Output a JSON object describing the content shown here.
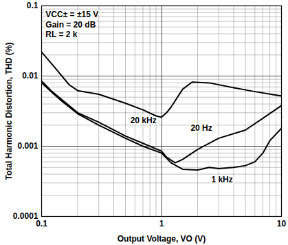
{
  "chart_data": {
    "type": "line",
    "log": true,
    "grid": true,
    "x_label": "Output Voltage, VO (V)",
    "y_label": "Total Harmonic Distortion, THD (%)",
    "xlim": [
      0.1,
      10
    ],
    "ylim": [
      0.0001,
      0.1
    ],
    "xticks": [
      0.1,
      1,
      10
    ],
    "yticks": [
      0.0001,
      0.001,
      0.01,
      0.1
    ],
    "series": [
      {
        "name": "20 kHz",
        "color": "#000000",
        "x": [
          0.1,
          0.13,
          0.17,
          0.2,
          0.3,
          0.5,
          0.7,
          0.9,
          1.0,
          1.1,
          1.2,
          1.5,
          1.8,
          2.5,
          4,
          6,
          10
        ],
        "values": [
          0.022,
          0.013,
          0.0075,
          0.0062,
          0.0055,
          0.0041,
          0.0033,
          0.0027,
          0.0026,
          0.003,
          0.0036,
          0.0065,
          0.0082,
          0.008,
          0.0068,
          0.006,
          0.0052
        ]
      },
      {
        "name": "20 Hz",
        "color": "#000000",
        "x": [
          0.1,
          0.12,
          0.15,
          0.2,
          0.3,
          0.5,
          0.7,
          1.0,
          1.1,
          1.3,
          1.5,
          2,
          3,
          5,
          7,
          10
        ],
        "values": [
          0.0085,
          0.0062,
          0.0045,
          0.003,
          0.0022,
          0.0014,
          0.0011,
          0.00085,
          0.0007,
          0.00058,
          0.00065,
          0.0009,
          0.0013,
          0.0017,
          0.0025,
          0.0038
        ]
      },
      {
        "name": "1 kHz",
        "color": "#000000",
        "x": [
          0.1,
          0.12,
          0.15,
          0.2,
          0.3,
          0.5,
          0.7,
          1.0,
          1.2,
          1.5,
          2,
          2.5,
          3,
          4,
          5,
          6,
          7,
          8,
          10
        ],
        "values": [
          0.008,
          0.006,
          0.0043,
          0.0029,
          0.002,
          0.0013,
          0.001,
          0.0008,
          0.00058,
          0.00047,
          0.00046,
          0.0005,
          0.00048,
          0.0005,
          0.00053,
          0.0006,
          0.0008,
          0.0012,
          0.0018
        ]
      }
    ],
    "annotations": [
      {
        "text": "VCC± = ±15 V",
        "x": 0.108,
        "y": 0.076
      },
      {
        "text": "Gain = 20 dB",
        "x": 0.108,
        "y": 0.054
      },
      {
        "text": "RL = 2 k",
        "x": 0.108,
        "y": 0.039
      },
      {
        "text": "20 kHz",
        "x": 0.55,
        "y": 0.0023
      },
      {
        "text": "20 Hz",
        "x": 1.75,
        "y": 0.0018
      },
      {
        "text": "1 kHz",
        "x": 2.6,
        "y": 0.00033
      }
    ]
  }
}
